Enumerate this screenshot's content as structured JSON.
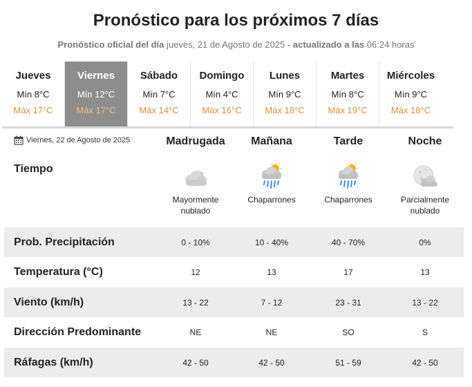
{
  "header": {
    "title": "Pronóstico para los próximos 7 días",
    "subtitle_official": "Pronóstico oficial del día",
    "subtitle_date": "jueves, 21 de Agosto de 2025",
    "subtitle_updated": "- actualizado a las",
    "subtitle_time": "06:24 horas"
  },
  "days": [
    {
      "name": "Jueves",
      "min": "Mín 8°C",
      "max": "Máx 17°C"
    },
    {
      "name": "Viernes",
      "min": "Mín 12°C",
      "max": "Máx 17°C"
    },
    {
      "name": "Sábado",
      "min": "Mín 7°C",
      "max": "Máx 14°C"
    },
    {
      "name": "Domingo",
      "min": "Mín 4°C",
      "max": "Máx 16°C"
    },
    {
      "name": "Lunes",
      "min": "Mín 9°C",
      "max": "Máx 18°C"
    },
    {
      "name": "Martes",
      "min": "Mín 8°C",
      "max": "Máx 19°C"
    },
    {
      "name": "Miércoles",
      "min": "Mín 9°C",
      "max": "Máx 18°C"
    }
  ],
  "selected_day": "Viernes",
  "detail": {
    "date": "Viernes, 22 de Agosto de 2025",
    "periods": [
      "Madrugada",
      "Mañana",
      "Tarde",
      "Noche"
    ],
    "tiempo_label": "Tiempo",
    "conditions": [
      {
        "icon": "cloudy-icon",
        "text": "Mayormente nublado"
      },
      {
        "icon": "showers-icon",
        "text": "Chaparrones"
      },
      {
        "icon": "showers-icon",
        "text": "Chaparrones"
      },
      {
        "icon": "night-partly-cloudy-icon",
        "text": "Parcialmente nublado"
      }
    ],
    "rows": [
      {
        "label": "Prob. Precipitación",
        "values": [
          "0 - 10%",
          "10 - 40%",
          "40 - 70%",
          "0%"
        ]
      },
      {
        "label": "Temperatura (°C)",
        "values": [
          "12",
          "13",
          "17",
          "13"
        ]
      },
      {
        "label": "Viento (km/h)",
        "values": [
          "13 - 22",
          "7 - 12",
          "23 - 31",
          "13 - 22"
        ]
      },
      {
        "label": "Dirección Predominante",
        "values": [
          "NE",
          "NE",
          "SO",
          "S"
        ]
      },
      {
        "label": "Ráfagas (km/h)",
        "values": [
          "42 - 50",
          "42 - 50",
          "51 - 59",
          "42 - 50"
        ]
      }
    ]
  },
  "colors": {
    "selected_day_bg": "#8d8d8d",
    "max_temp": "#d4933a",
    "row_shade": "#ececec"
  }
}
